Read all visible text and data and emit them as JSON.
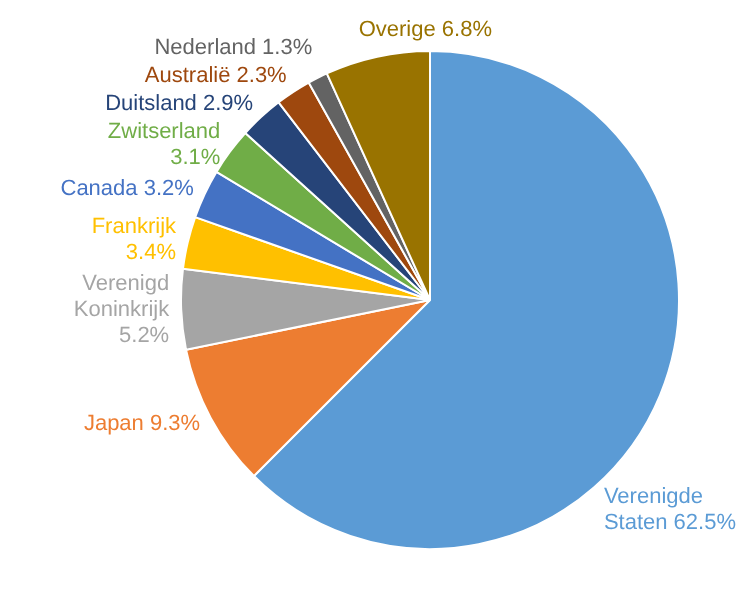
{
  "chart_data": {
    "type": "pie",
    "categories": [
      "Verenigde Staten",
      "Japan",
      "Verenigd Koninkrijk",
      "Frankrijk",
      "Canada",
      "Zwitserland",
      "Duitsland",
      "Australië",
      "Nederland",
      "Overige"
    ],
    "values": [
      62.5,
      9.3,
      5.2,
      3.4,
      3.2,
      3.1,
      2.9,
      2.3,
      1.3,
      6.8
    ],
    "value_labels": [
      "62.5%",
      "9.3%",
      "5.2%",
      "3.4%",
      "3.2%",
      "3.1%",
      "2.9%",
      "2.3%",
      "1.3%",
      "6.8%"
    ],
    "colors": [
      "#5b9bd5",
      "#ed7d31",
      "#a5a5a5",
      "#ffc000",
      "#4472c4",
      "#70ad47",
      "#264478",
      "#9e480e",
      "#636363",
      "#997300"
    ],
    "legend": false
  }
}
